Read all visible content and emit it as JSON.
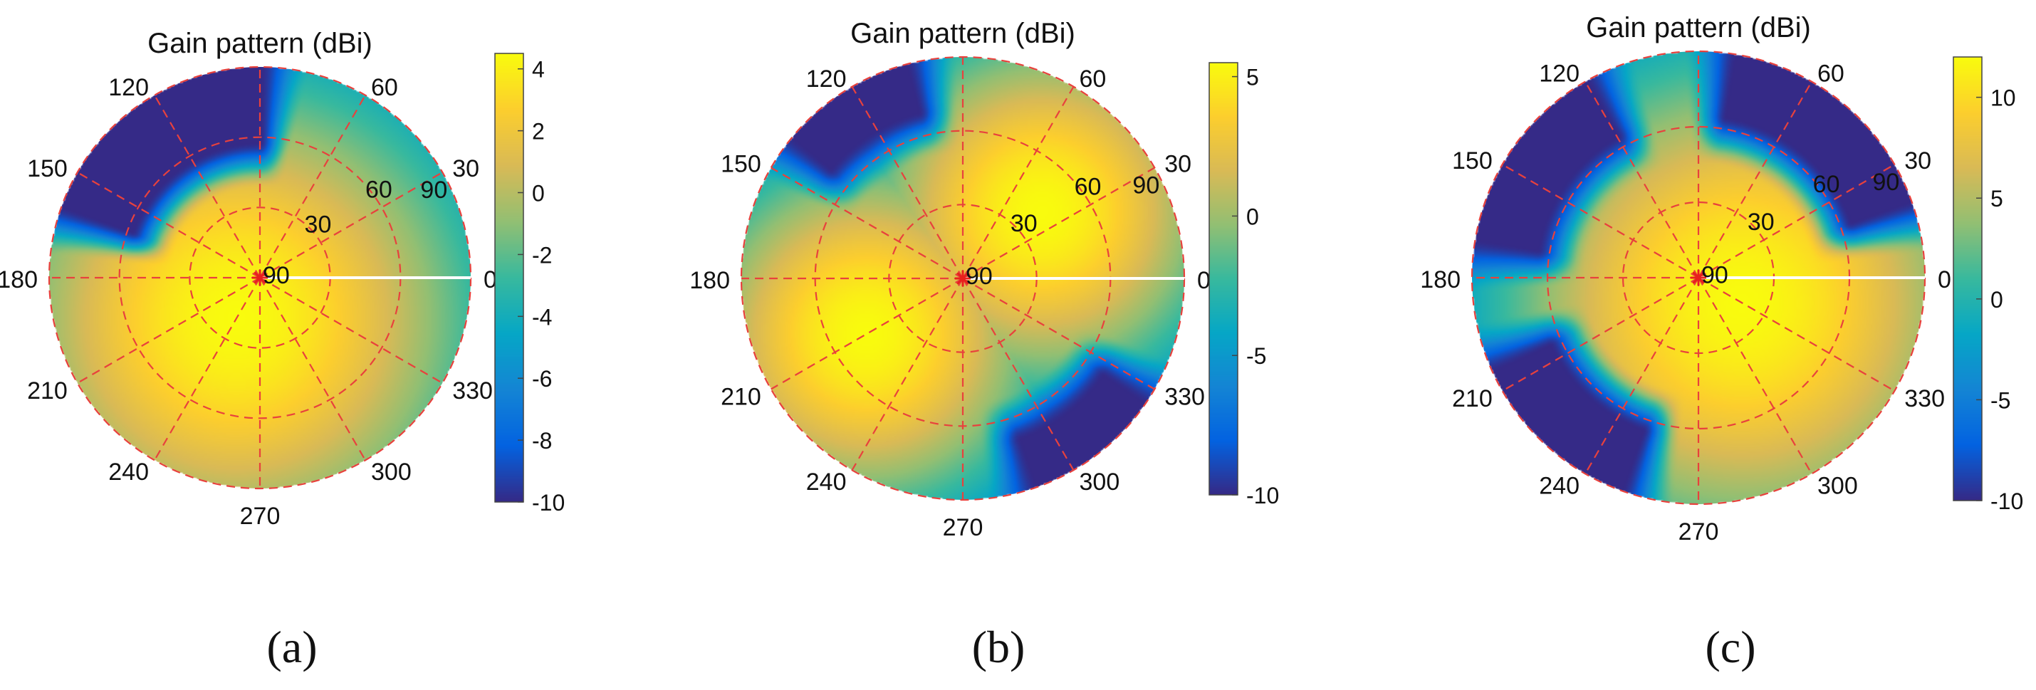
{
  "colormap": [
    "#352a87",
    "#0363e1",
    "#1485d4",
    "#06a7c6",
    "#38b99e",
    "#92bf73",
    "#d9ba56",
    "#fcce2e",
    "#f9fb0e"
  ],
  "grid_color": "#e8413d",
  "chart_data": [
    {
      "type": "heatmap",
      "panel_label": "(a)",
      "title": "Gain pattern (dBi)",
      "projection": "polar",
      "angle_ticks": [
        "0",
        "30",
        "60",
        "90",
        "120",
        "150",
        "180",
        "210",
        "240",
        "270",
        "300",
        "330"
      ],
      "radial_ticks": [
        "30",
        "60",
        "90"
      ],
      "colorbar": {
        "min": -10,
        "max": 4.5,
        "ticks": [
          "4",
          "2",
          "0",
          "-2",
          "-4",
          "-6",
          "-8",
          "-10"
        ],
        "tick_values": [
          4,
          2,
          0,
          -2,
          -4,
          -6,
          -8,
          -10
        ]
      },
      "lobes": [
        {
          "azimuth_deg": 240,
          "elevation_deg": 20,
          "width_deg": 85,
          "peak_dbi": 4.5
        }
      ],
      "nulls": [
        {
          "azimuth_from_deg": 90,
          "azimuth_to_deg": 160,
          "elevation_from_deg": 48
        }
      ],
      "floor_dbi": -10
    },
    {
      "type": "heatmap",
      "panel_label": "(b)",
      "title": "Gain pattern (dBi)",
      "projection": "polar",
      "angle_ticks": [
        "0",
        "30",
        "60",
        "90",
        "120",
        "150",
        "180",
        "210",
        "240",
        "270",
        "300",
        "330"
      ],
      "radial_ticks": [
        "30",
        "60",
        "90"
      ],
      "colorbar": {
        "min": -10,
        "max": 5.5,
        "ticks": [
          "5",
          "0",
          "-5",
          "-10"
        ],
        "tick_values": [
          5,
          0,
          -5,
          -10
        ]
      },
      "lobes": [
        {
          "azimuth_deg": 40,
          "elevation_deg": 42,
          "width_deg": 60,
          "peak_dbi": 5.5
        },
        {
          "azimuth_deg": 210,
          "elevation_deg": 45,
          "width_deg": 60,
          "peak_dbi": 5.5
        }
      ],
      "nulls": [
        {
          "azimuth_from_deg": 105,
          "azimuth_to_deg": 140,
          "elevation_from_deg": 60
        },
        {
          "azimuth_from_deg": 290,
          "azimuth_to_deg": 325,
          "elevation_from_deg": 60
        }
      ],
      "floor_dbi": -10
    },
    {
      "type": "heatmap",
      "panel_label": "(c)",
      "title": "Gain pattern (dBi)",
      "projection": "polar",
      "angle_ticks": [
        "0",
        "30",
        "60",
        "90",
        "120",
        "150",
        "180",
        "210",
        "240",
        "270",
        "300",
        "330"
      ],
      "radial_ticks": [
        "30",
        "60",
        "90"
      ],
      "colorbar": {
        "min": -10,
        "max": 12,
        "ticks": [
          "10",
          "5",
          "0",
          "-5",
          "-10"
        ],
        "tick_values": [
          10,
          5,
          0,
          -5,
          -10
        ]
      },
      "lobes": [
        {
          "azimuth_deg": 330,
          "elevation_deg": 20,
          "width_deg": 80,
          "peak_dbi": 12
        }
      ],
      "nulls": [
        {
          "azimuth_from_deg": 20,
          "azimuth_to_deg": 80,
          "elevation_from_deg": 55
        },
        {
          "azimuth_from_deg": 120,
          "azimuth_to_deg": 170,
          "elevation_from_deg": 55
        },
        {
          "azimuth_from_deg": 205,
          "azimuth_to_deg": 250,
          "elevation_from_deg": 55
        }
      ],
      "floor_dbi": -10
    }
  ]
}
